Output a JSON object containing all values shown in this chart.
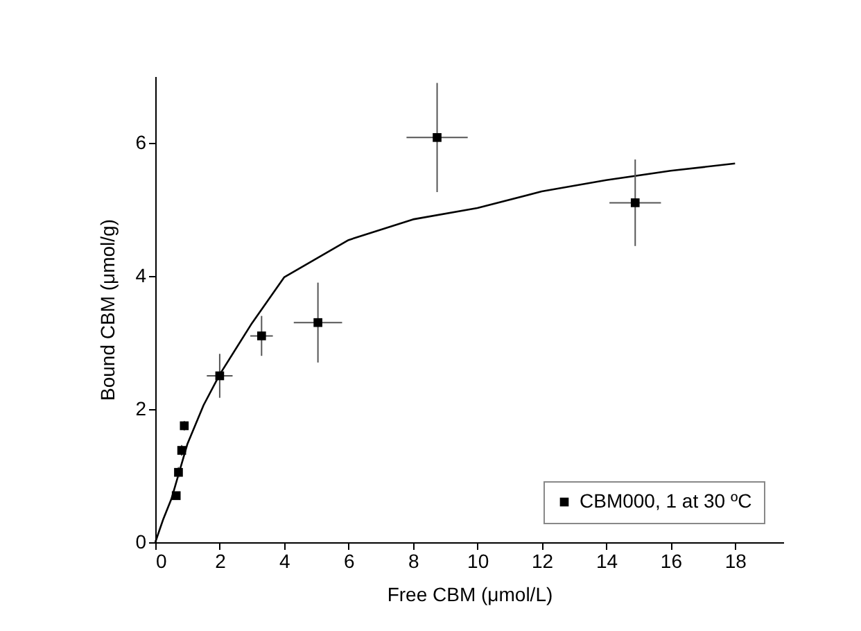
{
  "chart_data": {
    "type": "scatter",
    "xlabel": "Free CBM (μmol/L)",
    "ylabel": "Bound CBM (μmol/g)",
    "xlim": [
      0,
      19.5
    ],
    "ylim": [
      0,
      7
    ],
    "xticks": [
      0,
      2,
      4,
      6,
      8,
      10,
      12,
      14,
      16,
      18
    ],
    "yticks": [
      0,
      2,
      4,
      6
    ],
    "grid": false,
    "legend": "bottom right",
    "series": [
      {
        "name": "CBM000, 1 at 30 ºC",
        "marker": "square",
        "color": "#000000",
        "x": [
          0.65,
          0.72,
          0.82,
          0.9,
          2.0,
          3.3,
          5.05,
          8.75,
          14.9
        ],
        "values": [
          0.7,
          1.05,
          1.38,
          1.75,
          2.5,
          3.1,
          3.3,
          6.08,
          5.1
        ],
        "errors": [
          0.05,
          0.08,
          0.08,
          0.07,
          0.33,
          0.3,
          0.6,
          0.82,
          0.65
        ],
        "xerrors": [
          0.05,
          0.08,
          0.07,
          0.1,
          0.4,
          0.35,
          0.75,
          0.95,
          0.8
        ]
      },
      {
        "type": "line",
        "marker": "none",
        "color": "#000000",
        "line_style": "solid",
        "x": [
          0,
          0.25,
          0.5,
          1,
          1.5,
          2,
          3,
          4,
          6,
          8,
          10,
          12,
          14,
          16,
          18
        ],
        "values": [
          0,
          0.35,
          0.65,
          1.48,
          2.06,
          2.52,
          3.29,
          3.98,
          4.54,
          4.85,
          5.02,
          5.27,
          5.44,
          5.58,
          5.69
        ]
      }
    ]
  }
}
